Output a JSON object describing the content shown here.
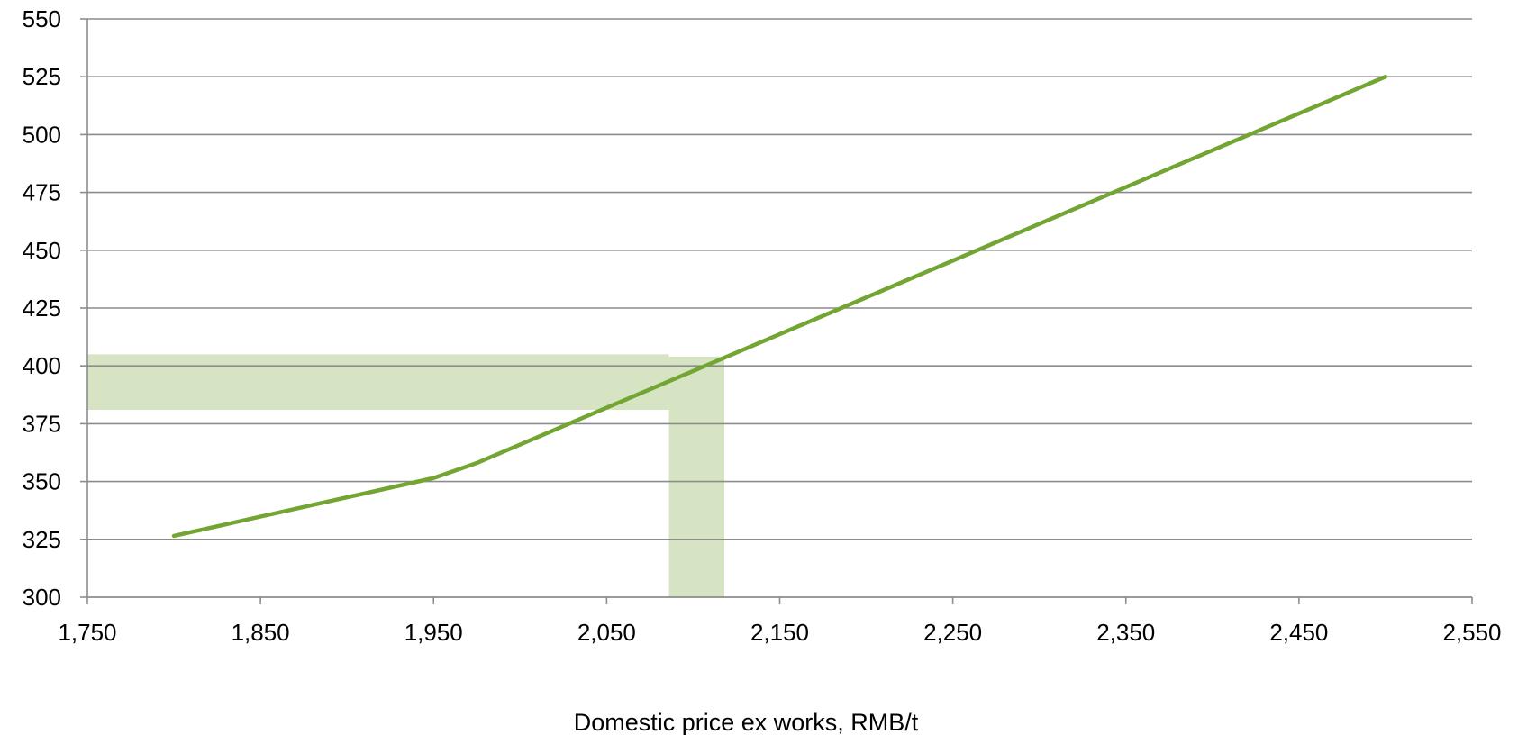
{
  "chart_data": {
    "type": "line",
    "title": "",
    "xlabel": "Domestic price ex works, RMB/t",
    "ylabel": "",
    "xlim": [
      1750,
      2550
    ],
    "ylim": [
      300,
      550
    ],
    "x_ticks": [
      1750,
      1850,
      1950,
      2050,
      2150,
      2250,
      2350,
      2450,
      2550
    ],
    "x_tick_labels": [
      "1,750",
      "1,850",
      "1,950",
      "2,050",
      "2,150",
      "2,250",
      "2,350",
      "2,450",
      "2,550"
    ],
    "y_ticks": [
      300,
      325,
      350,
      375,
      400,
      425,
      450,
      475,
      500,
      525,
      550
    ],
    "y_tick_labels": [
      "300",
      "325",
      "350",
      "375",
      "400",
      "425",
      "450",
      "475",
      "500",
      "525",
      "550"
    ],
    "grid": true,
    "legend": "none",
    "series": [
      {
        "color": "#73A533",
        "points": [
          {
            "x": 1800,
            "y": 326.5
          },
          {
            "x": 1950,
            "y": 351.5
          },
          {
            "x": 1975,
            "y": 358
          },
          {
            "x": 2000,
            "y": 366
          },
          {
            "x": 2500,
            "y": 525
          }
        ]
      }
    ],
    "shaded_bands": [
      {
        "orientation": "horizontal",
        "y_range": [
          381,
          405
        ],
        "x_range": [
          1750,
          2086
        ],
        "color": "#D7E4C4"
      },
      {
        "orientation": "vertical",
        "x_range": [
          2086,
          2118
        ],
        "y_range": [
          300,
          404
        ],
        "color": "#D7E4C4"
      }
    ],
    "gridline_color": "#8C8C8C"
  }
}
